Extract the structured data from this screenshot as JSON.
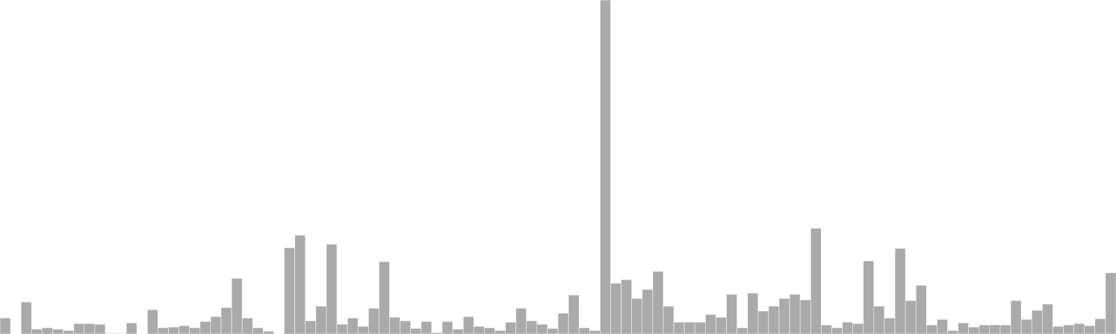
{
  "colors": {
    "bar_fill": "#aaaaaa",
    "bar_stroke": "#ffffff",
    "background": "#ffffff"
  },
  "chart_data": {
    "type": "bar",
    "title": "",
    "xlabel": "",
    "ylabel": "",
    "axes_visible": false,
    "grid": false,
    "ylim": [
      0,
      480
    ],
    "values": [
      23,
      0,
      46,
      7,
      9,
      7,
      5,
      15,
      15,
      14,
      1,
      1,
      16,
      0,
      35,
      9,
      10,
      12,
      9,
      18,
      25,
      38,
      80,
      23,
      9,
      4,
      0,
      124,
      142,
      19,
      40,
      129,
      14,
      23,
      11,
      37,
      104,
      24,
      19,
      8,
      18,
      2,
      18,
      7,
      25,
      11,
      9,
      5,
      17,
      37,
      19,
      14,
      8,
      30,
      56,
      9,
      5,
      480,
      73,
      78,
      51,
      64,
      90,
      40,
      17,
      17,
      17,
      28,
      24,
      57,
      9,
      59,
      33,
      40,
      51,
      57,
      49,
      152,
      13,
      9,
      17,
      15,
      105,
      40,
      23,
      123,
      48,
      70,
      13,
      21,
      5,
      16,
      10,
      13,
      13,
      13,
      48,
      21,
      34,
      43,
      11,
      13,
      15,
      12,
      22,
      88
    ]
  }
}
